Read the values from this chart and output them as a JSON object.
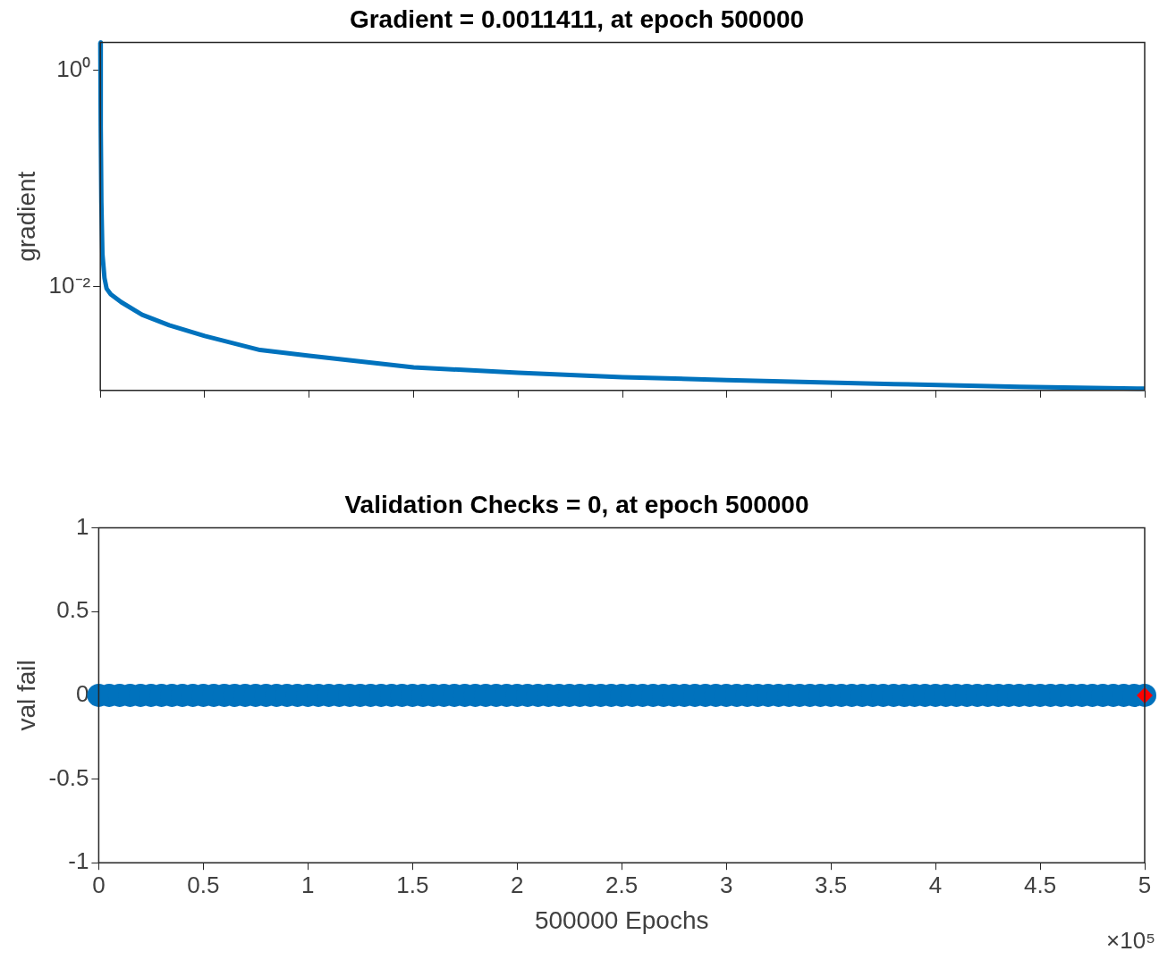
{
  "chart_data": [
    {
      "type": "line",
      "title": "Gradient = 0.0011411, at epoch 500000",
      "ylabel": "gradient",
      "log": "y",
      "x": [
        0,
        0.002,
        0.005,
        0.01,
        0.02,
        0.03,
        0.05,
        0.1,
        0.2,
        0.33,
        0.5,
        0.765,
        1,
        1.5,
        2,
        2.5,
        3,
        3.8,
        4.4,
        5
      ],
      "series": [
        {
          "color": "#0072bd",
          "values": [
            1.8,
            0.3,
            0.06,
            0.02,
            0.012,
            0.0096,
            0.0085,
            0.0072,
            0.0055,
            0.0044,
            0.0035,
            0.0026,
            0.0023,
            0.0018,
            0.0016,
            0.00146,
            0.00137,
            0.00126,
            0.00119,
            0.0011411
          ]
        }
      ],
      "xlim": [
        0,
        5
      ],
      "xticks": [
        0,
        0.5,
        1,
        1.5,
        2,
        2.5,
        3,
        3.5,
        4,
        4.5,
        5
      ],
      "ylim": [
        0.0011,
        1.8
      ],
      "yticks": [
        {
          "value": 0.01,
          "label": "10⁻²"
        },
        {
          "value": 1,
          "label": "10⁰"
        }
      ],
      "tick_labels": "y"
    },
    {
      "type": "scatter",
      "title": "Validation Checks = 0, at epoch 500000",
      "xlabel": "500000 Epochs",
      "ylabel": "val fail",
      "marker": "circle",
      "x": [
        0,
        0.05,
        0.1,
        0.15,
        0.2,
        0.25,
        0.3,
        0.35,
        0.4,
        0.45,
        0.5,
        0.55,
        0.6,
        0.65,
        0.7,
        0.75,
        0.8,
        0.85,
        0.9,
        0.95,
        1,
        1.05,
        1.1,
        1.15,
        1.2,
        1.25,
        1.3,
        1.35,
        1.4,
        1.45,
        1.5,
        1.55,
        1.6,
        1.65,
        1.7,
        1.75,
        1.8,
        1.85,
        1.9,
        1.95,
        2,
        2.05,
        2.1,
        2.15,
        2.2,
        2.25,
        2.3,
        2.35,
        2.4,
        2.45,
        2.5,
        2.55,
        2.6,
        2.65,
        2.7,
        2.75,
        2.8,
        2.85,
        2.9,
        2.95,
        3,
        3.05,
        3.1,
        3.15,
        3.2,
        3.25,
        3.3,
        3.35,
        3.4,
        3.45,
        3.5,
        3.55,
        3.6,
        3.65,
        3.7,
        3.75,
        3.8,
        3.85,
        3.9,
        3.95,
        4,
        4.05,
        4.1,
        4.15,
        4.2,
        4.25,
        4.3,
        4.35,
        4.4,
        4.45,
        4.5,
        4.55,
        4.6,
        4.65,
        4.7,
        4.75,
        4.8,
        4.85,
        4.9,
        4.95,
        5
      ],
      "series": [
        {
          "color": "#0072bd",
          "values": [
            0,
            0,
            0,
            0,
            0,
            0,
            0,
            0,
            0,
            0,
            0,
            0,
            0,
            0,
            0,
            0,
            0,
            0,
            0,
            0,
            0,
            0,
            0,
            0,
            0,
            0,
            0,
            0,
            0,
            0,
            0,
            0,
            0,
            0,
            0,
            0,
            0,
            0,
            0,
            0,
            0,
            0,
            0,
            0,
            0,
            0,
            0,
            0,
            0,
            0,
            0,
            0,
            0,
            0,
            0,
            0,
            0,
            0,
            0,
            0,
            0,
            0,
            0,
            0,
            0,
            0,
            0,
            0,
            0,
            0,
            0,
            0,
            0,
            0,
            0,
            0,
            0,
            0,
            0,
            0,
            0,
            0,
            0,
            0,
            0,
            0,
            0,
            0,
            0,
            0,
            0,
            0,
            0,
            0,
            0,
            0,
            0,
            0,
            0,
            0,
            0
          ]
        },
        {
          "marker": "diamond",
          "color": "#ff0000",
          "x": [
            5
          ],
          "values": [
            0
          ]
        }
      ],
      "xlim": [
        0,
        5
      ],
      "xticks": [
        0,
        0.5,
        1,
        1.5,
        2,
        2.5,
        3,
        3.5,
        4,
        4.5,
        5
      ],
      "ylim": [
        -1,
        1
      ],
      "yticks": [
        -1,
        -0.5,
        0,
        0.5,
        1
      ],
      "annotations": [
        "×10⁵"
      ]
    }
  ]
}
